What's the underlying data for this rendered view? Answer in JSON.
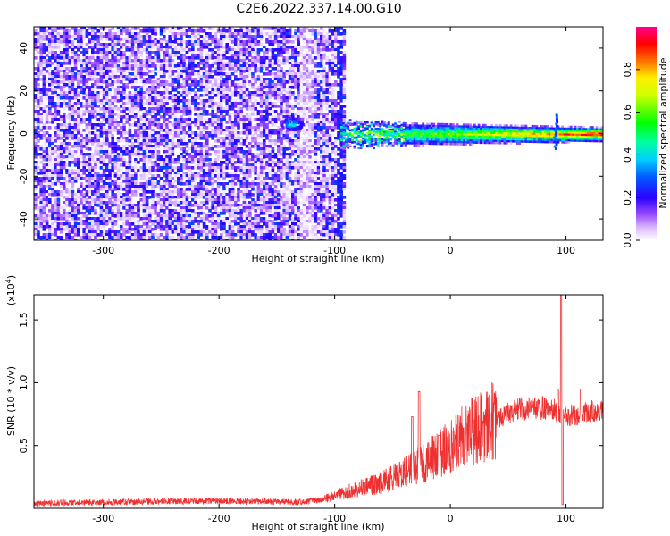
{
  "title": "C2E6.2022.337.14.00.G10",
  "chart_data": [
    {
      "type": "heatmap",
      "xlabel": "Height of straight line (km)",
      "ylabel": "Frequency (Hz)",
      "xlim": [
        -360,
        132
      ],
      "ylim": [
        -50,
        50
      ],
      "x_ticks": [
        {
          "value": -300,
          "label": "-300"
        },
        {
          "value": -200,
          "label": "-200"
        },
        {
          "value": -100,
          "label": "-100"
        },
        {
          "value": 0,
          "label": "0"
        },
        {
          "value": 100,
          "label": "100"
        }
      ],
      "y_ticks": [
        {
          "value": -40,
          "label": "-40"
        },
        {
          "value": -20,
          "label": "-20"
        },
        {
          "value": 0,
          "label": "0"
        },
        {
          "value": 20,
          "label": "20"
        },
        {
          "value": 40,
          "label": "40"
        }
      ],
      "colorbar": {
        "label": "Normalized spectral amplitude",
        "range": [
          0,
          1
        ],
        "ticks": [
          {
            "value": 0.0,
            "label": "0.0"
          },
          {
            "value": 0.2,
            "label": "0.2"
          },
          {
            "value": 0.4,
            "label": "0.4"
          },
          {
            "value": 0.6,
            "label": "0.6"
          },
          {
            "value": 0.8,
            "label": "0.8"
          }
        ],
        "colors": [
          "#ffffff",
          "#c080ff",
          "#6a00ff",
          "#0000ff",
          "#00c0ff",
          "#00ffc0",
          "#00ff00",
          "#c0ff00",
          "#ffff00",
          "#ff8000",
          "#ff0000",
          "#ff0080"
        ]
      },
      "features": {
        "noise_region_x": [
          -360,
          -95
        ],
        "cutoff_x": -95,
        "band_center_hz": 0,
        "bright_spot": {
          "x": -138,
          "y": 5
        },
        "spike_x": 90
      }
    },
    {
      "type": "line",
      "xlabel": "Height of straight line (km)",
      "ylabel": "SNR (10 * v/v)",
      "y_multiplier": "(x10",
      "y_exponent": "4",
      "y_multiplier_close": ")",
      "xlim": [
        -360,
        132
      ],
      "ylim": [
        0,
        17000
      ],
      "x_ticks": [
        {
          "value": -300,
          "label": "-300"
        },
        {
          "value": -200,
          "label": "-200"
        },
        {
          "value": -100,
          "label": "-100"
        },
        {
          "value": 0,
          "label": "0"
        },
        {
          "value": 100,
          "label": "100"
        }
      ],
      "y_ticks": [
        {
          "value": 5000,
          "label": "0.5"
        },
        {
          "value": 10000,
          "label": "1.0"
        },
        {
          "value": 15000,
          "label": "1.5"
        }
      ],
      "series": [
        {
          "color": "#ee3030",
          "profile": [
            {
              "x": -360,
              "y": 400
            },
            {
              "x": -300,
              "y": 500
            },
            {
              "x": -200,
              "y": 600
            },
            {
              "x": -130,
              "y": 500
            },
            {
              "x": -110,
              "y": 700
            },
            {
              "x": -90,
              "y": 1300
            },
            {
              "x": -60,
              "y": 2000
            },
            {
              "x": -40,
              "y": 2800
            },
            {
              "x": -20,
              "y": 3800
            },
            {
              "x": 0,
              "y": 5000
            },
            {
              "x": 20,
              "y": 6200
            },
            {
              "x": 40,
              "y": 7100
            },
            {
              "x": 60,
              "y": 7900
            },
            {
              "x": 80,
              "y": 8000
            },
            {
              "x": 90,
              "y": 7800
            },
            {
              "x": 100,
              "y": 7300
            },
            {
              "x": 115,
              "y": 7600
            },
            {
              "x": 132,
              "y": 7800
            }
          ],
          "spikes": [
            {
              "x": -33,
              "y": 7300
            },
            {
              "x": -27,
              "y": 9300
            },
            {
              "x": -10,
              "y": 5800
            },
            {
              "x": 93,
              "y": 9500
            },
            {
              "x": 96,
              "y": 17000
            },
            {
              "x": 97,
              "y": 300
            },
            {
              "x": 113,
              "y": 9500
            }
          ]
        }
      ]
    }
  ]
}
